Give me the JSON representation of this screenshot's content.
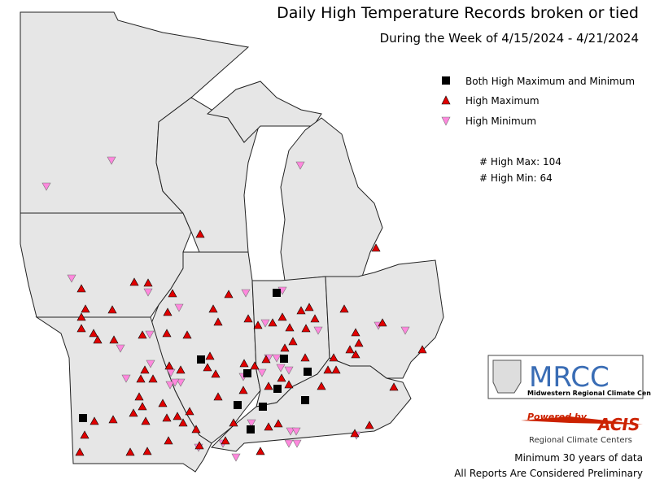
{
  "header": {
    "title": "Daily High Temperature Records broken or tied",
    "subtitle": "During the Week of 4/15/2024 - 4/21/2024"
  },
  "legend": {
    "items": [
      {
        "label": "Both High Maximum and Minimum"
      },
      {
        "label": "High Maximum"
      },
      {
        "label": "High Minimum"
      }
    ]
  },
  "stats": [
    {
      "label": "# High Max:",
      "value": 104
    },
    {
      "label": "# High Min:",
      "value": 64
    }
  ],
  "logos": {
    "mrcc": {
      "name": "MRCC",
      "full_name": "Midwestern Regional Climate Center"
    },
    "acis": {
      "powered_by": "Powered by",
      "name": "ACIS",
      "tagline": "Regional Climate Centers"
    }
  },
  "footnotes": [
    "Minimum 30 years of data",
    "All Reports Are Considered Preliminary"
  ]
}
